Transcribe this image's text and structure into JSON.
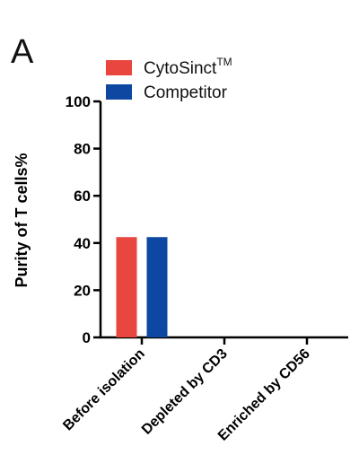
{
  "panel_label": "A",
  "chart_data": {
    "type": "bar",
    "categories": [
      "Before isolation",
      "Depleted by CD3",
      "Enriched by CD56"
    ],
    "series": [
      {
        "name": "CytoSinct",
        "name_sup": "TM",
        "color": "#e8463f",
        "values": [
          42.5,
          0,
          0
        ]
      },
      {
        "name": "Competitor",
        "name_sup": "",
        "color": "#0d47a1",
        "values": [
          42.5,
          0,
          0
        ]
      }
    ],
    "title": "",
    "xlabel": "",
    "ylabel": "Purity of  T  cells%",
    "ylim": [
      0,
      100
    ],
    "yticks": [
      0,
      20,
      40,
      60,
      80,
      100
    ],
    "grid": false,
    "legend_position": "top"
  }
}
